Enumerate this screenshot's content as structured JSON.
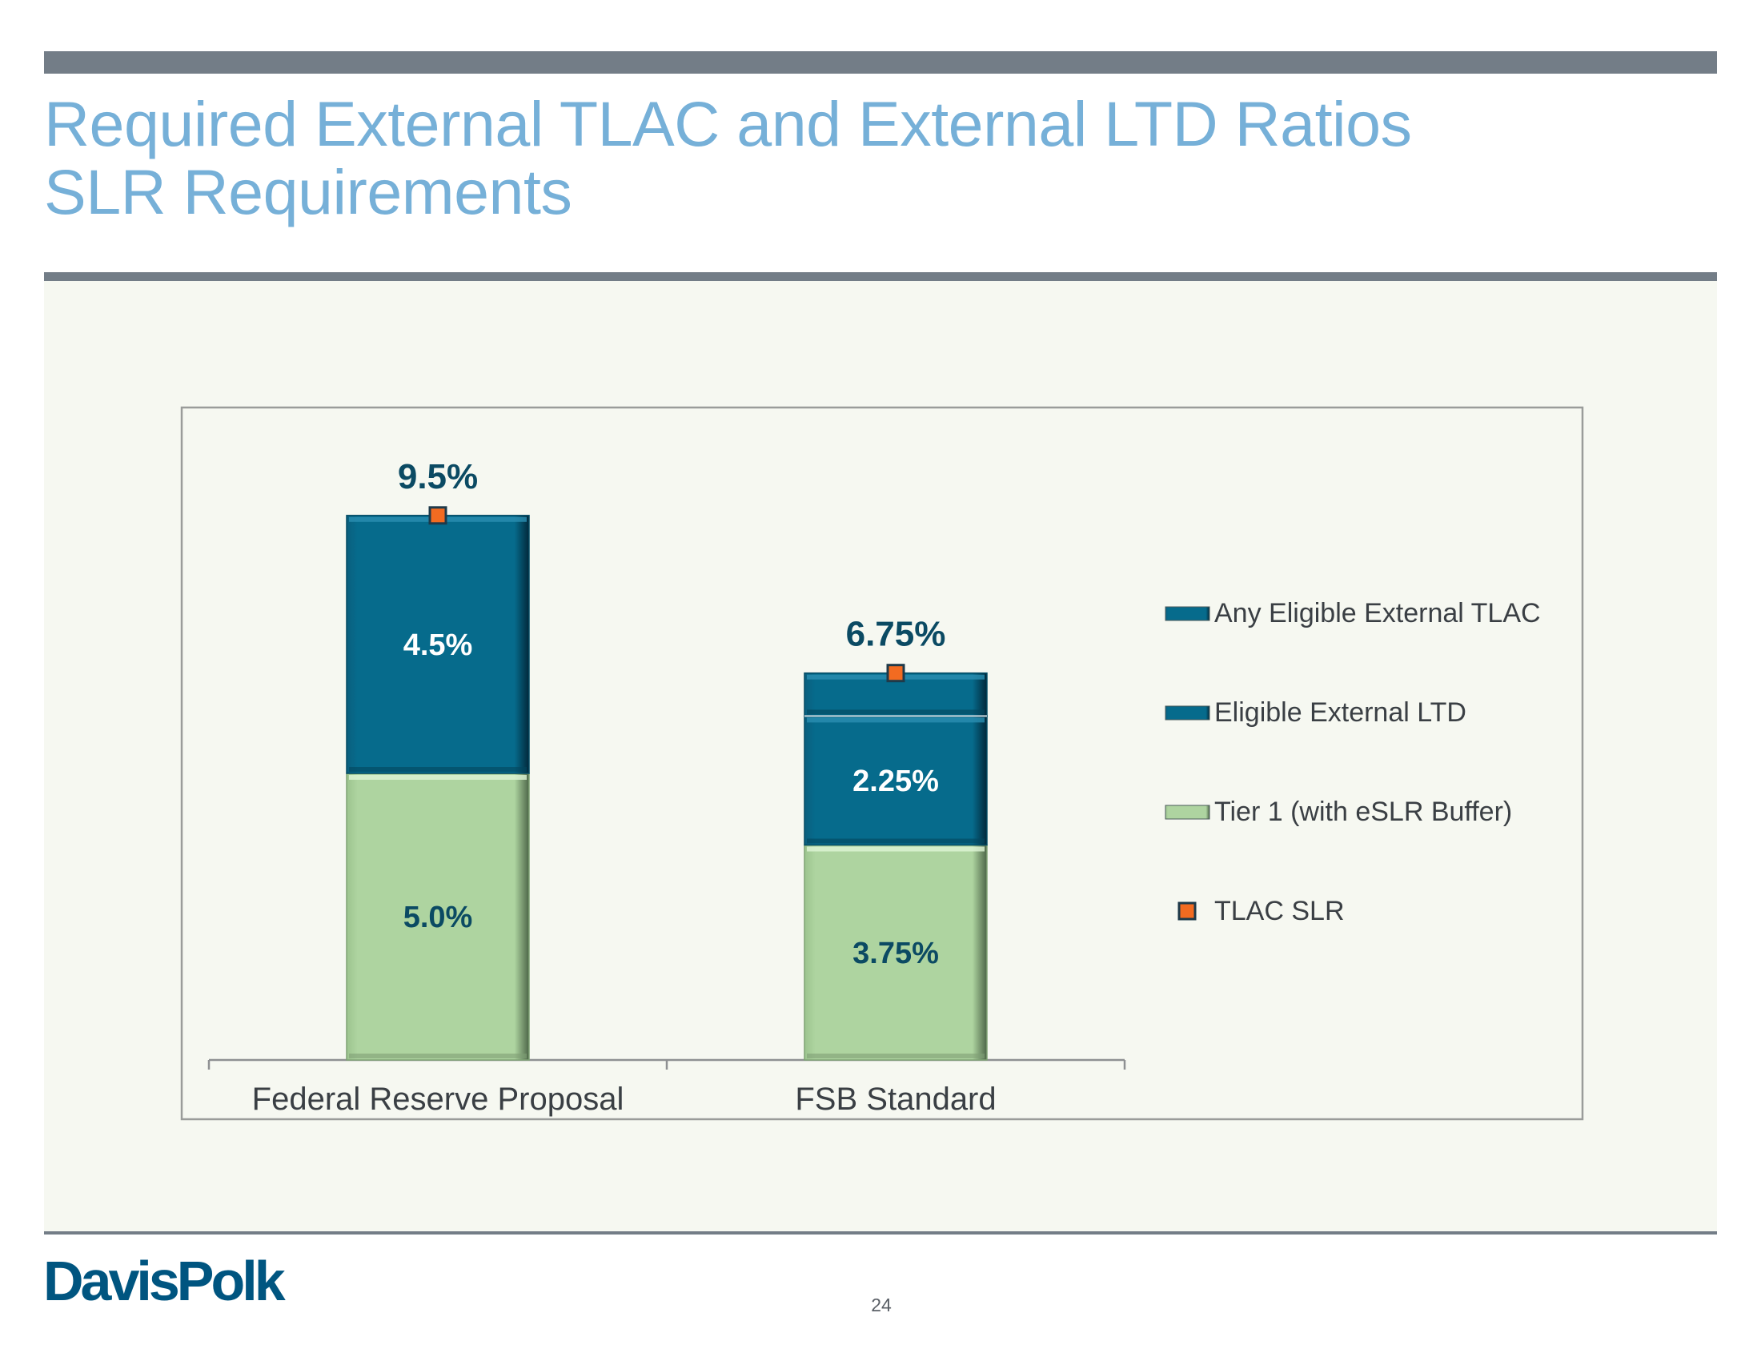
{
  "slide": {
    "title_line1": "Required External TLAC and External LTD Ratios",
    "title_line2": "SLR Requirements",
    "logo": "DavisPolk",
    "page_number": "24"
  },
  "colors": {
    "title": "#76b0d8",
    "bar_gray": "#737d87",
    "tlac_any": "#066b8c",
    "ltd": "#066b8c",
    "tier1": "#aed4a0",
    "marker": "#f26b21",
    "label_dark": "#0b4a63",
    "logo": "#005580"
  },
  "chart_data": {
    "type": "bar",
    "stacked": true,
    "title": "",
    "xlabel": "",
    "ylabel": "",
    "ylim": [
      0,
      10
    ],
    "grid": false,
    "legend_position": "right",
    "categories": [
      "Federal Reserve Proposal",
      "FSB Standard"
    ],
    "series": [
      {
        "name": "Tier 1 (with eSLR Buffer)",
        "values": [
          5.0,
          3.75
        ],
        "labels": [
          "5.0%",
          "3.75%"
        ],
        "color": "#aed4a0",
        "label_color": "#0b4a63"
      },
      {
        "name": "Eligible External LTD",
        "values": [
          4.5,
          2.25
        ],
        "labels": [
          "4.5%",
          "2.25%"
        ],
        "color": "#066b8c",
        "label_color": "#ffffff"
      },
      {
        "name": "Any Eligible External TLAC",
        "values": [
          0,
          0.75
        ],
        "labels": [
          "",
          ""
        ],
        "color": "#066b8c",
        "label_color": "#ffffff"
      }
    ],
    "markers": {
      "name": "TLAC SLR",
      "values": [
        9.5,
        6.75
      ],
      "labels": [
        "9.5%",
        "6.75%"
      ],
      "color": "#f26b21"
    },
    "legend": [
      "Any Eligible External TLAC",
      "Eligible External LTD",
      "Tier 1 (with eSLR Buffer)",
      "TLAC SLR"
    ]
  }
}
